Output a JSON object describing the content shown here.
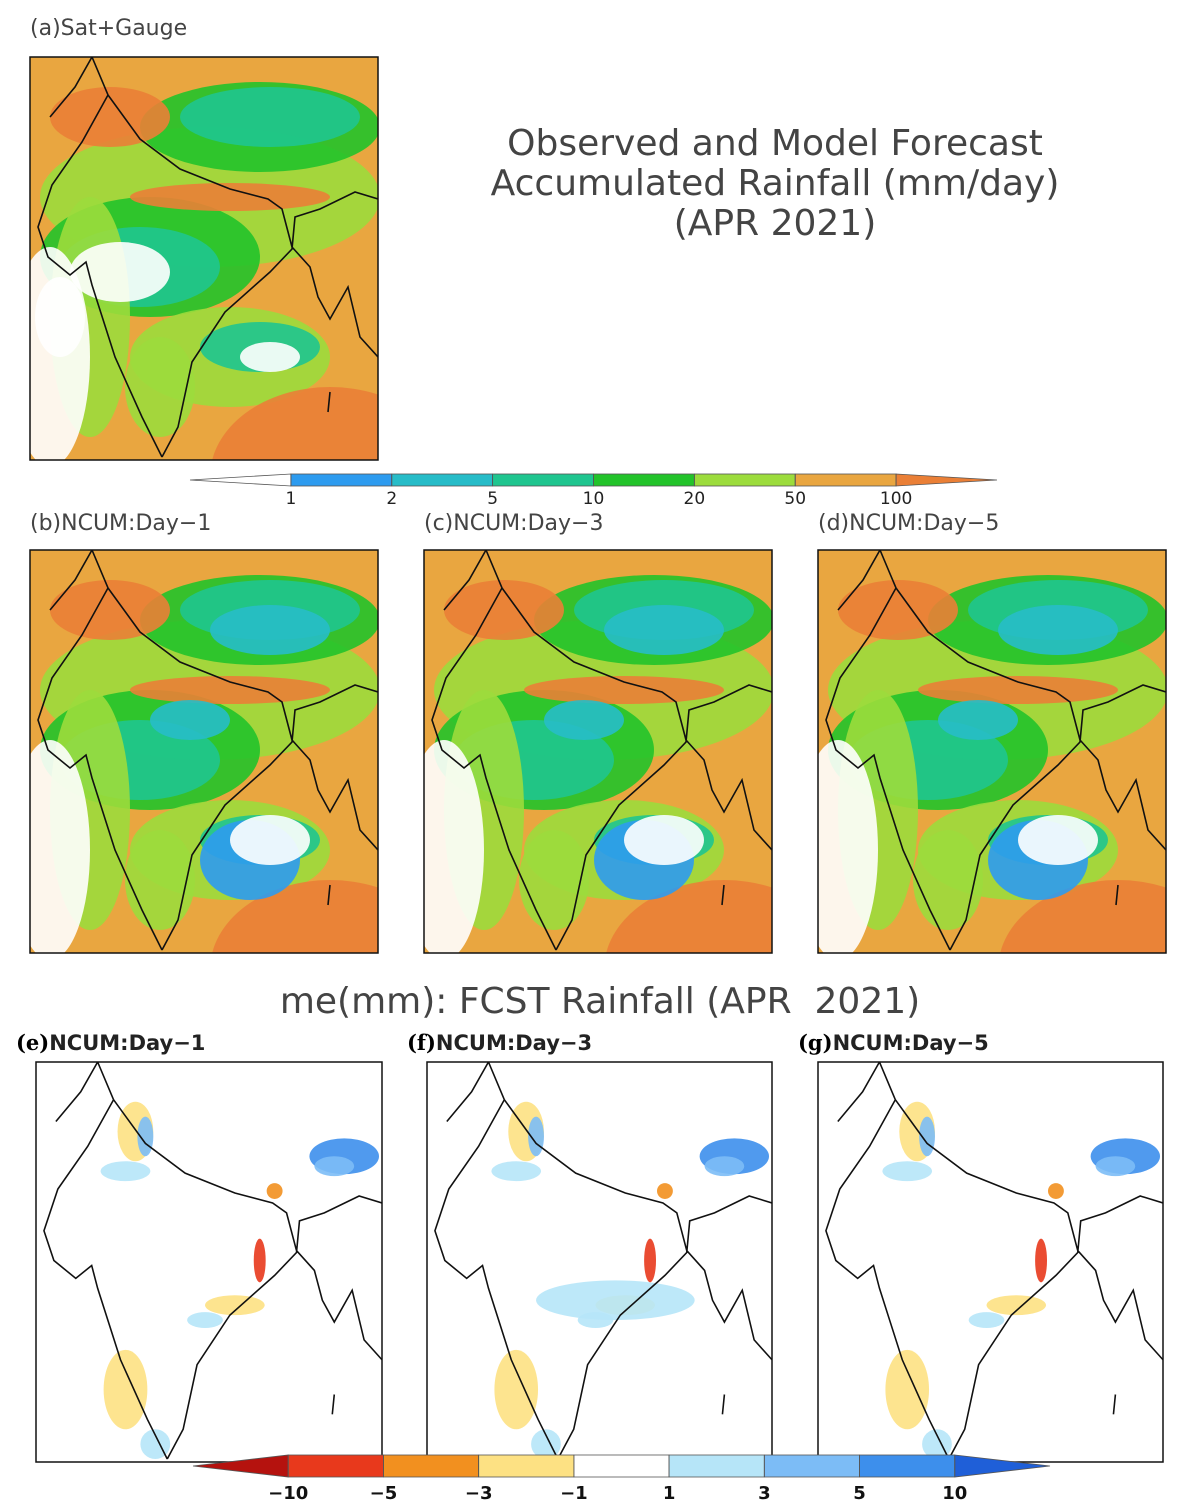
{
  "title": {
    "lines": [
      "Observed and Model Forecast",
      "Accumulated Rainfall (mm/day)",
      "(APR 2021)"
    ]
  },
  "panels_top": [
    {
      "label": "(a)Sat+Gauge"
    },
    {
      "label": "(b)NCUM:Day−1"
    },
    {
      "label": "(c)NCUM:Day−3"
    },
    {
      "label": "(d)NCUM:Day−5"
    }
  ],
  "colorbar_top": {
    "ticks": [
      1,
      2,
      5,
      10,
      20,
      50,
      100
    ],
    "colors": [
      "#ffffff",
      "#2d9bef",
      "#27bcc8",
      "#1fc58f",
      "#22c32a",
      "#9cdc3c",
      "#e9a640",
      "#ea7f36"
    ]
  },
  "bias_title": "me(mm): FCST Rainfall (APR  2021)",
  "panels_bottom": [
    {
      "letter": "(e)",
      "label": "NCUM:Day−1"
    },
    {
      "letter": "(f)",
      "label": "NCUM:Day−3"
    },
    {
      "letter": "(g)",
      "label": "NCUM:Day−5"
    }
  ],
  "colorbar_bottom": {
    "ticks": [
      {
        "value": -10,
        "label": "−10"
      },
      {
        "value": -5,
        "label": "−5"
      },
      {
        "value": -3,
        "label": "−3"
      },
      {
        "value": -1,
        "label": "−1"
      },
      1,
      3,
      5,
      10
    ],
    "colors": [
      "#b5120e",
      "#e8391c",
      "#f2901f",
      "#fde183",
      "#ffffff",
      "#b6e5f8",
      "#7cbcf6",
      "#3d8fec",
      "#1f5fd8"
    ]
  }
}
